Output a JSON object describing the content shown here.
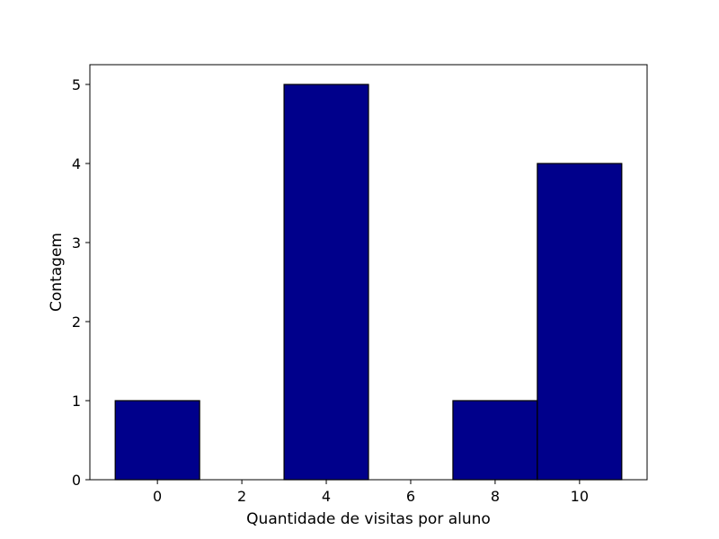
{
  "chart_data": {
    "type": "bar",
    "subtype": "histogram",
    "title": "",
    "xlabel": "Quantidade de visitas por aluno",
    "ylabel": "Contagem",
    "bins": [
      {
        "x0": -1,
        "x1": 1,
        "count": 1
      },
      {
        "x0": 1,
        "x1": 3,
        "count": 0
      },
      {
        "x0": 3,
        "x1": 5,
        "count": 5
      },
      {
        "x0": 5,
        "x1": 7,
        "count": 0
      },
      {
        "x0": 7,
        "x1": 9,
        "count": 1
      },
      {
        "x0": 9,
        "x1": 11,
        "count": 4
      }
    ],
    "xlim": [
      -1.6,
      11.6
    ],
    "ylim": [
      0,
      5.25
    ],
    "xticks": [
      0,
      2,
      4,
      6,
      8,
      10
    ],
    "yticks": [
      0,
      1,
      2,
      3,
      4,
      5
    ],
    "grid": false,
    "legend": "none",
    "bar_color": "#00008b",
    "edge_color": "#000000"
  }
}
